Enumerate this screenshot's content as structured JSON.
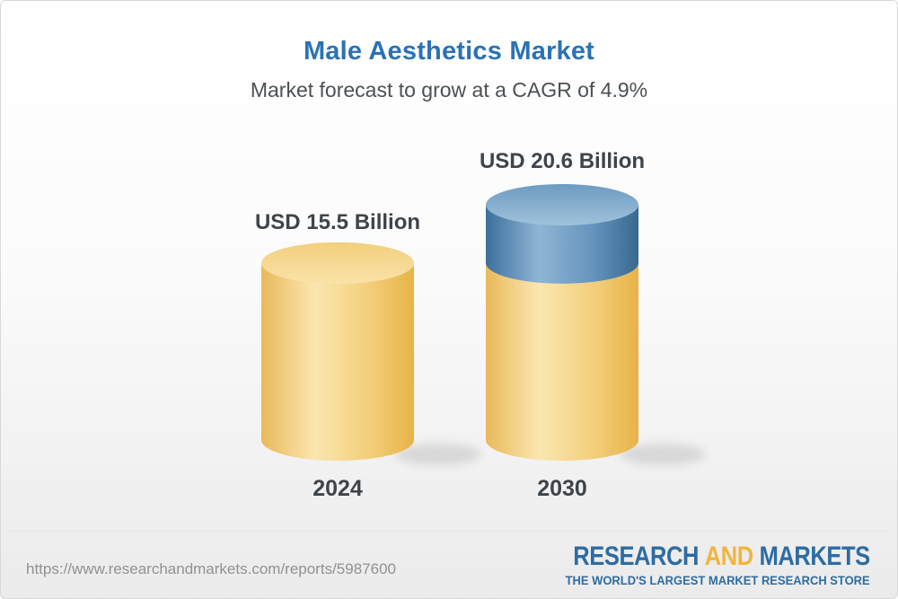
{
  "header": {
    "title": "Male Aesthetics Market",
    "subtitle": "Market forecast to grow at a CAGR of 4.9%"
  },
  "chart_data": {
    "type": "bar",
    "variant": "3d-cylinder",
    "categories": [
      "2024",
      "2030"
    ],
    "values": [
      15.5,
      20.6
    ],
    "value_labels": [
      "USD 15.5 Billion",
      "USD 20.6 Billion"
    ],
    "unit": "USD Billion",
    "base_value": 15.5,
    "title": "Male Aesthetics Market",
    "subtitle": "Market forecast to grow at a CAGR of 4.9%",
    "cagr": "4.9%",
    "grid": false,
    "legend": false,
    "colors": {
      "base_body": [
        "#e9b95a",
        "#fbe6b0",
        "#f3cf7c",
        "#e7b348"
      ],
      "base_top": [
        "#f2cf7e",
        "#f9e2a8"
      ],
      "growth_body": [
        "#3d6f9c",
        "#8fb5d3",
        "#6594bd",
        "#38688f"
      ],
      "growth_top": [
        "#6d9bc0",
        "#9fc2dc"
      ]
    }
  },
  "footer": {
    "url": "https://www.researchandmarkets.com/reports/5987600",
    "logo": {
      "part1": "RESEARCH",
      "part2": "AND",
      "part3": "MARKETS",
      "tagline": "THE WORLD'S LARGEST MARKET RESEARCH STORE"
    }
  },
  "colors": {
    "title_blue": "#2b72b4",
    "subtitle_gray": "#4b5054",
    "text_dark": "#3e4449",
    "url_gray": "#8f9193",
    "logo_blue": "#2d6ca3",
    "logo_gold": "#f1b53e"
  }
}
